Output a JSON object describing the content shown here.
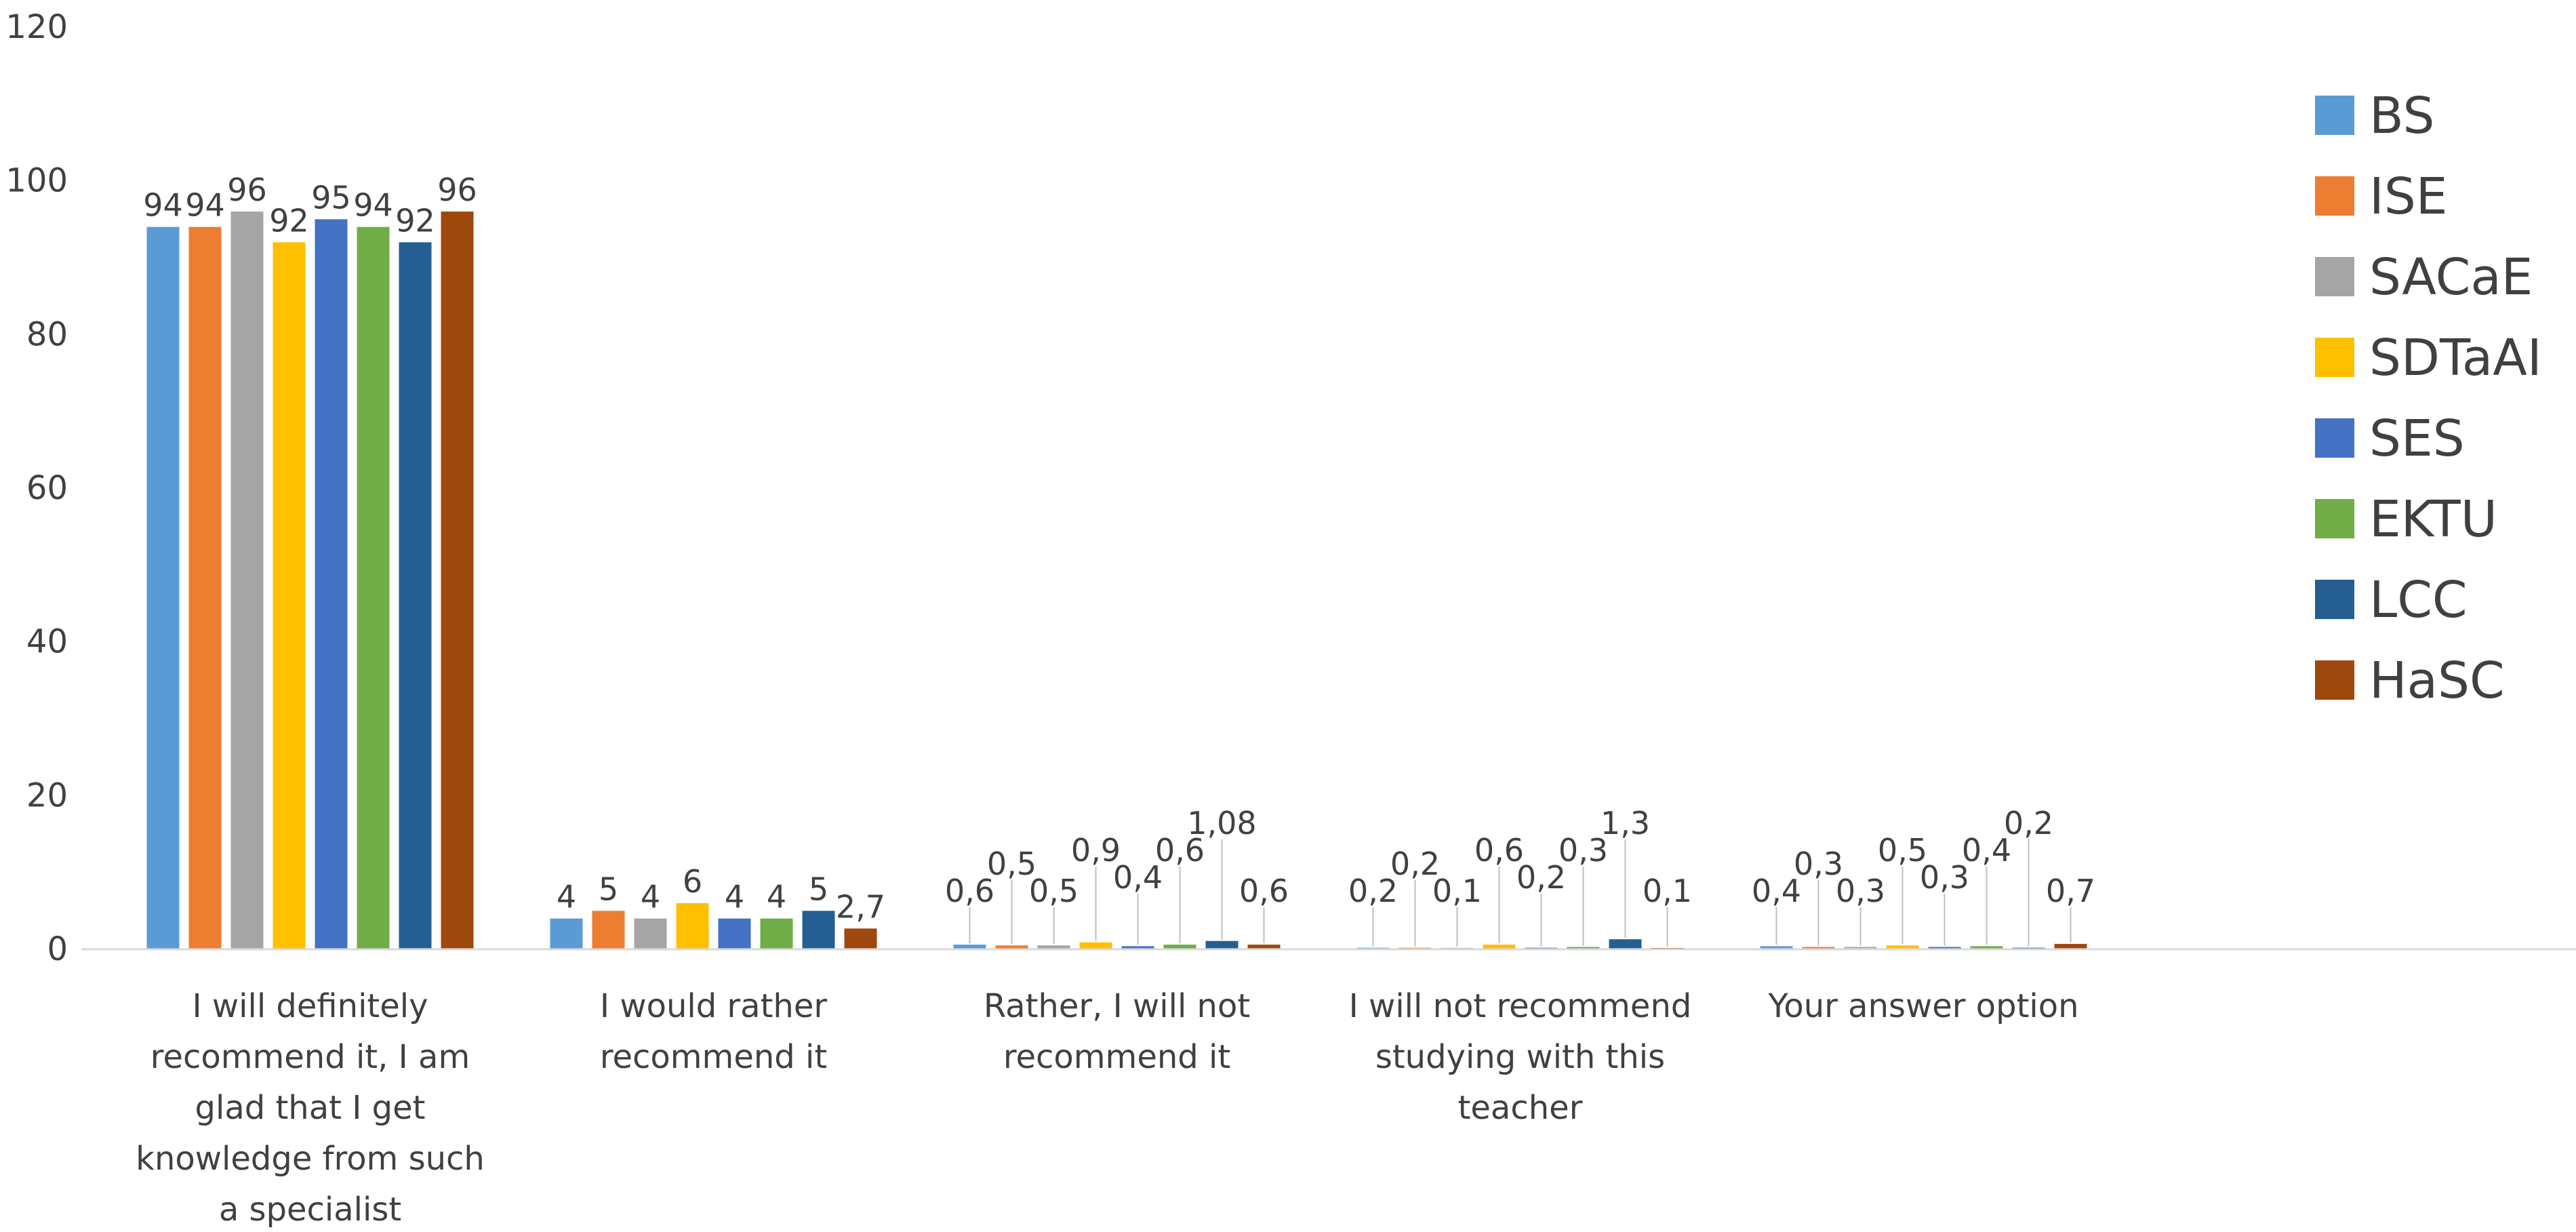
{
  "chart_data": {
    "type": "bar",
    "title": "",
    "xlabel": "",
    "ylabel": "",
    "ylim": [
      0,
      120
    ],
    "yticks": [
      0,
      20,
      40,
      60,
      80,
      100,
      120
    ],
    "grid": false,
    "legend_position": "right",
    "categories": [
      [
        "I will definitely",
        "recommend it, I am",
        "glad that I get",
        "knowledge from such",
        "a specialist"
      ],
      [
        "I would rather",
        "recommend it"
      ],
      [
        "Rather, I will not",
        "recommend it"
      ],
      [
        "I will not recommend",
        "studying with this",
        "teacher"
      ],
      [
        "Your answer option"
      ]
    ],
    "series": [
      {
        "name": "BS",
        "color": "#5B9BD5",
        "values": [
          94,
          4,
          0.6,
          0.2,
          0.4
        ],
        "labels": [
          "94",
          "4",
          "0,6",
          "0,2",
          "0,4"
        ]
      },
      {
        "name": "ISE",
        "color": "#ED7D31",
        "values": [
          94,
          5,
          0.5,
          0.2,
          0.3
        ],
        "labels": [
          "94",
          "5",
          "0,5",
          "0,2",
          "0,3"
        ]
      },
      {
        "name": "SACaE",
        "color": "#A5A5A5",
        "values": [
          96,
          4,
          0.5,
          0.1,
          0.3
        ],
        "labels": [
          "96",
          "4",
          "0,5",
          "0,1",
          "0,3"
        ]
      },
      {
        "name": "SDTaAI",
        "color": "#FFC000",
        "values": [
          92,
          6,
          0.9,
          0.6,
          0.5
        ],
        "labels": [
          "92",
          "6",
          "0,9",
          "0,6",
          "0,5"
        ]
      },
      {
        "name": "SES",
        "color": "#4472C4",
        "values": [
          95,
          4,
          0.4,
          0.2,
          0.3
        ],
        "labels": [
          "95",
          "4",
          "0,4",
          "0,2",
          "0,3"
        ]
      },
      {
        "name": "EKTU",
        "color": "#70AD47",
        "values": [
          94,
          4,
          0.6,
          0.3,
          0.4
        ],
        "labels": [
          "94",
          "4",
          "0,6",
          "0,3",
          "0,4"
        ]
      },
      {
        "name": "LCC",
        "color": "#255E91",
        "values": [
          92,
          5,
          1.08,
          1.3,
          0.2
        ],
        "labels": [
          "92",
          "5",
          "1,08",
          "1,3",
          "0,2"
        ]
      },
      {
        "name": "HaSC",
        "color": "#9E480E",
        "values": [
          96,
          2.7,
          0.6,
          0.1,
          0.7
        ],
        "labels": [
          "96",
          "2,7",
          "0,6",
          "0,1",
          "0,7"
        ]
      }
    ]
  }
}
